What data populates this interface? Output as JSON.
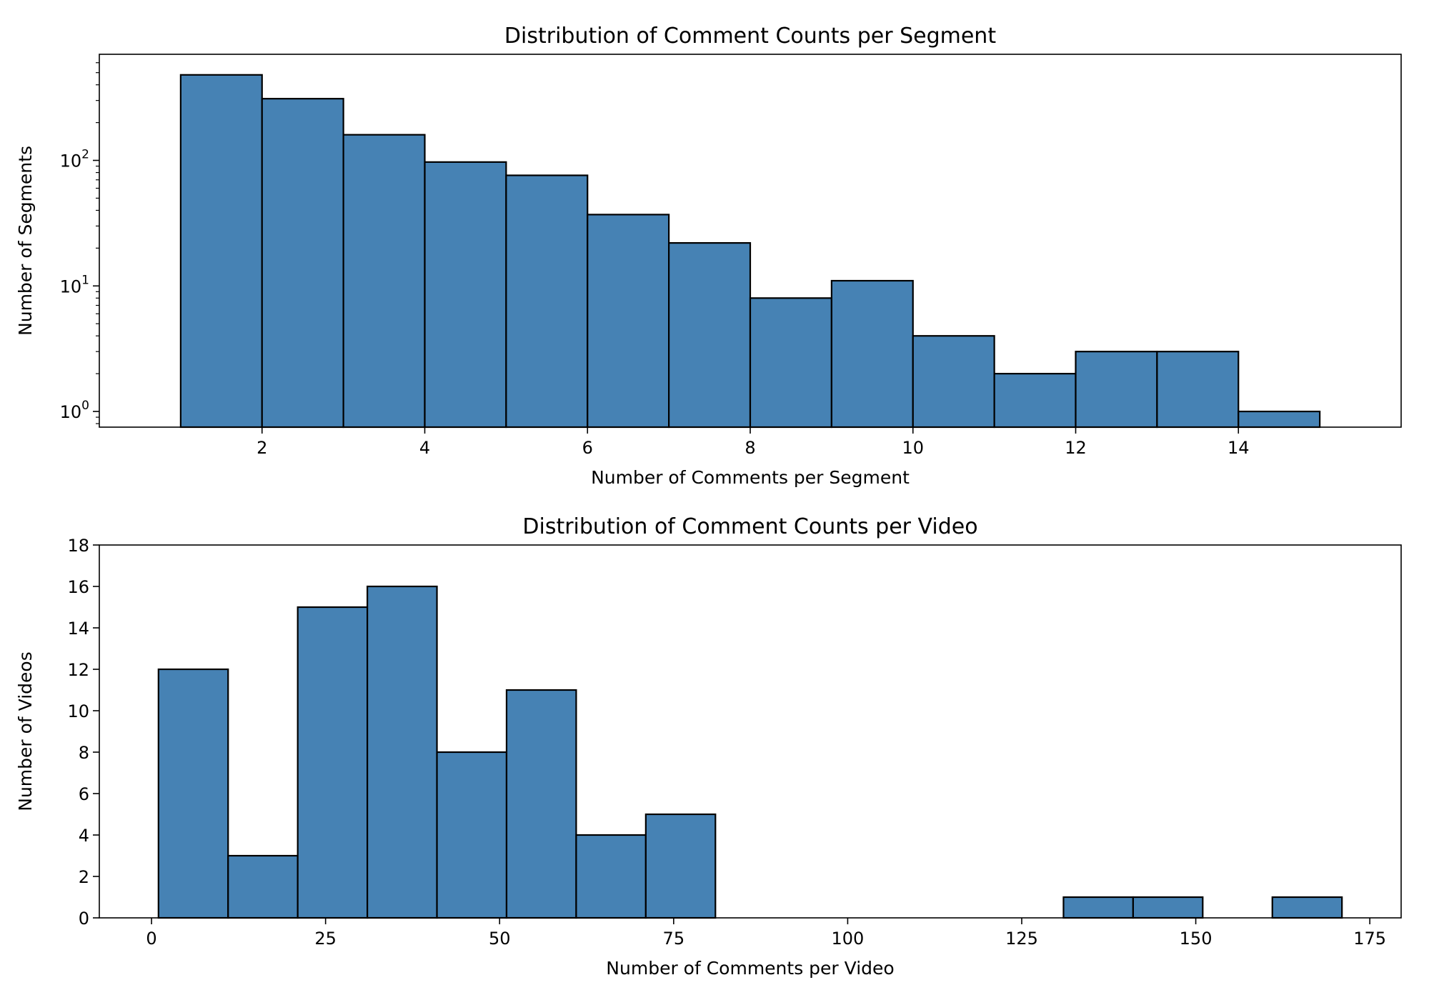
{
  "chart_data": [
    {
      "type": "bar",
      "subtype": "histogram",
      "title": "Distribution of Comment Counts per Segment",
      "xlabel": "Number of Comments per Segment",
      "ylabel": "Number of Segments",
      "yscale": "log",
      "bin_edges": [
        1,
        2,
        3,
        4,
        5,
        6,
        7,
        8,
        9,
        10,
        11,
        12,
        13,
        14,
        15
      ],
      "values": [
        480,
        310,
        160,
        97,
        76,
        37,
        22,
        8,
        11,
        4,
        2,
        3,
        3,
        1
      ],
      "xlim": [
        0,
        16
      ],
      "ylim": [
        0.75,
        700
      ],
      "xticks": [
        2,
        4,
        6,
        8,
        10,
        12,
        14
      ],
      "xtick_labels": [
        "2",
        "4",
        "6",
        "8",
        "10",
        "12",
        "14"
      ],
      "yticks": [
        1,
        10,
        100
      ],
      "ytick_labels": [
        {
          "base": "10",
          "exp": "0"
        },
        {
          "base": "10",
          "exp": "1"
        },
        {
          "base": "10",
          "exp": "2"
        }
      ],
      "color": "#4682b4",
      "edge_color": "#000000",
      "grid": false
    },
    {
      "type": "bar",
      "subtype": "histogram",
      "title": "Distribution of Comment Counts per Video",
      "xlabel": "Number of Comments per Video",
      "ylabel": "Number of Videos",
      "yscale": "linear",
      "bin_edges": [
        1,
        11,
        21,
        31,
        41,
        51,
        61,
        71,
        81,
        91,
        101,
        111,
        121,
        131,
        141,
        151,
        161,
        171
      ],
      "values": [
        12,
        3,
        15,
        16,
        8,
        11,
        4,
        5,
        0,
        0,
        0,
        0,
        0,
        1,
        1,
        0,
        1
      ],
      "xlim": [
        -7.5,
        179.5
      ],
      "ylim": [
        0,
        18
      ],
      "xticks": [
        0,
        25,
        50,
        75,
        100,
        125,
        150,
        175
      ],
      "xtick_labels": [
        "0",
        "25",
        "50",
        "75",
        "100",
        "125",
        "150",
        "175"
      ],
      "yticks": [
        0,
        2,
        4,
        6,
        8,
        10,
        12,
        14,
        16,
        18
      ],
      "ytick_labels": [
        "0",
        "2",
        "4",
        "6",
        "8",
        "10",
        "12",
        "14",
        "16",
        "18"
      ],
      "color": "#4682b4",
      "edge_color": "#000000",
      "grid": false
    }
  ]
}
